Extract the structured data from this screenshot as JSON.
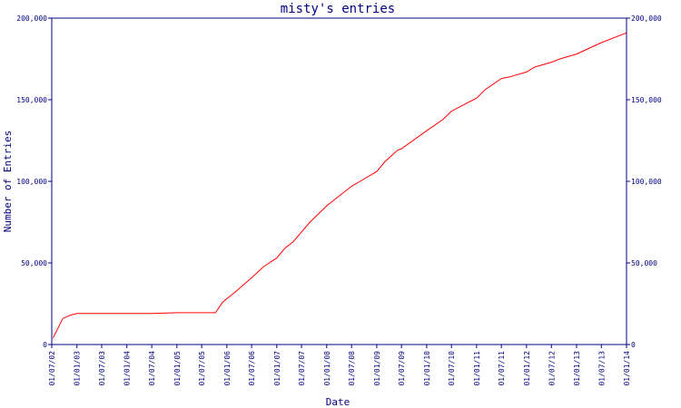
{
  "chart_data": {
    "type": "line",
    "title": "misty's entries",
    "xlabel": "Date",
    "ylabel": "Number of Entries",
    "x_axis_type": "date",
    "y_axis_right_mirror": true,
    "grid": false,
    "legend": "none",
    "xlim": [
      "2002-07-01",
      "2014-01-01"
    ],
    "ylim": [
      0,
      200000
    ],
    "y_ticks": [
      0,
      50000,
      100000,
      150000,
      200000
    ],
    "y_tick_labels": [
      "0",
      "50,000",
      "100,000",
      "150,000",
      "200,000"
    ],
    "x_ticks": [
      "2002-07-01",
      "2003-01-01",
      "2003-07-01",
      "2004-01-01",
      "2004-07-01",
      "2005-01-01",
      "2005-07-01",
      "2006-01-01",
      "2006-07-01",
      "2007-01-01",
      "2007-07-01",
      "2008-01-01",
      "2008-07-01",
      "2009-01-01",
      "2009-07-01",
      "2010-01-01",
      "2010-07-01",
      "2011-01-01",
      "2011-07-01",
      "2012-01-01",
      "2012-07-01",
      "2013-01-01",
      "2013-07-01",
      "2014-01-01"
    ],
    "x_tick_labels": [
      "01/07/02",
      "01/01/03",
      "01/07/03",
      "01/01/04",
      "01/07/04",
      "01/01/05",
      "01/07/05",
      "01/01/06",
      "01/07/06",
      "01/01/07",
      "01/07/07",
      "01/01/08",
      "01/07/08",
      "01/01/09",
      "01/07/09",
      "01/01/10",
      "01/07/10",
      "01/01/11",
      "01/07/11",
      "01/01/12",
      "01/07/12",
      "01/01/13",
      "01/07/13",
      "01/01/14"
    ],
    "colors": {
      "line": "#ff0000",
      "axis": "#000080",
      "text": "#000080"
    },
    "series": [
      {
        "x": [
          "2002-07-10",
          "2002-09-20",
          "2002-11-15",
          "2003-01-01",
          "2004-07-01",
          "2005-01-01",
          "2005-07-01",
          "2005-10-10",
          "2005-12-01",
          "2006-03-01",
          "2006-07-01",
          "2006-10-01",
          "2007-01-01",
          "2007-03-01",
          "2007-05-01",
          "2007-07-01",
          "2007-09-01",
          "2008-01-01",
          "2008-05-01",
          "2008-07-01",
          "2008-09-01",
          "2009-01-01",
          "2009-03-01",
          "2009-06-01",
          "2009-07-01",
          "2010-01-01",
          "2010-05-01",
          "2010-07-01",
          "2011-01-01",
          "2011-03-01",
          "2011-07-01",
          "2011-09-01",
          "2012-01-01",
          "2012-03-01",
          "2012-07-01",
          "2012-09-01",
          "2013-01-01",
          "2013-07-01",
          "2014-01-01"
        ],
        "y": [
          4000,
          16000,
          18000,
          19000,
          19000,
          19500,
          19500,
          19500,
          26000,
          32000,
          41000,
          48000,
          53000,
          59000,
          63000,
          69000,
          75000,
          85000,
          93000,
          97000,
          100000,
          106000,
          112000,
          119000,
          120000,
          131000,
          138000,
          143000,
          151000,
          156000,
          163000,
          164000,
          167000,
          170000,
          173000,
          175000,
          178000,
          185000,
          191000
        ]
      }
    ]
  }
}
